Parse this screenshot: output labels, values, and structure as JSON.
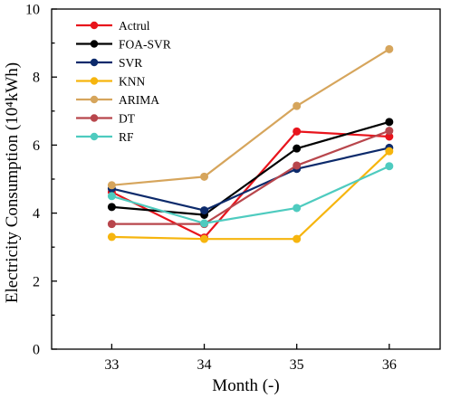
{
  "chart_data": {
    "type": "line",
    "title": "",
    "xlabel": "Month (-)",
    "ylabel": "Electricity Consumption (10⁴kWh)",
    "x": [
      33,
      34,
      35,
      36
    ],
    "x_ticks": [
      "33",
      "34",
      "35",
      "36"
    ],
    "xlim": [
      32.35,
      36.55
    ],
    "y_ticks": [
      "0",
      "2",
      "4",
      "6",
      "8",
      "10"
    ],
    "ylim": [
      0,
      10
    ],
    "grid": false,
    "legend_position": "top-left",
    "series": [
      {
        "name": "Actrul",
        "color": "#e8141c",
        "values": [
          4.62,
          3.28,
          6.4,
          6.25
        ]
      },
      {
        "name": "FOA-SVR",
        "color": "#000000",
        "values": [
          4.18,
          3.95,
          5.9,
          6.68
        ]
      },
      {
        "name": "SVR",
        "color": "#0c2a6b",
        "values": [
          4.72,
          4.08,
          5.3,
          5.92
        ]
      },
      {
        "name": "KNN",
        "color": "#f6b50e",
        "values": [
          3.3,
          3.24,
          3.24,
          5.82
        ]
      },
      {
        "name": "ARIMA",
        "color": "#d6a55c",
        "values": [
          4.82,
          5.07,
          7.15,
          8.82
        ]
      },
      {
        "name": "DT",
        "color": "#b8464c",
        "values": [
          3.68,
          3.68,
          5.4,
          6.42
        ]
      },
      {
        "name": "RF",
        "color": "#4ecbbf",
        "values": [
          4.5,
          3.7,
          4.15,
          5.38
        ]
      }
    ]
  }
}
